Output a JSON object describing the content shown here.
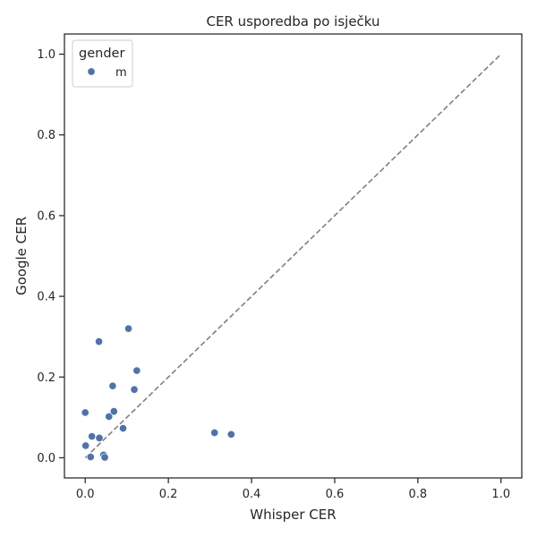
{
  "chart_data": {
    "type": "scatter",
    "title": "CER usporedba po isječku",
    "xlabel": "Whisper CER",
    "ylabel": "Google CER",
    "xlim": [
      -0.05,
      1.05
    ],
    "ylim": [
      -0.05,
      1.05
    ],
    "xticks": [
      0.0,
      0.2,
      0.4,
      0.6,
      0.8,
      1.0
    ],
    "yticks": [
      0.0,
      0.2,
      0.4,
      0.6,
      0.8,
      1.0
    ],
    "xtick_labels": [
      "0.0",
      "0.2",
      "0.4",
      "0.6",
      "0.8",
      "1.0"
    ],
    "ytick_labels": [
      "0.0",
      "0.2",
      "0.4",
      "0.6",
      "0.8",
      "1.0"
    ],
    "grid": false,
    "legend": {
      "title": "gender",
      "placement": "top-left",
      "entries": [
        {
          "label": "m",
          "color": "#4c72b0"
        }
      ]
    },
    "reference_line": {
      "from": [
        0,
        0
      ],
      "to": [
        1,
        1
      ],
      "style": "dashed",
      "color": "#808080"
    },
    "series": [
      {
        "name": "m",
        "color": "#4c72b0",
        "points": [
          {
            "x": 0.0,
            "y": 0.112
          },
          {
            "x": 0.001,
            "y": 0.03
          },
          {
            "x": 0.013,
            "y": 0.002
          },
          {
            "x": 0.016,
            "y": 0.053
          },
          {
            "x": 0.033,
            "y": 0.288
          },
          {
            "x": 0.034,
            "y": 0.049
          },
          {
            "x": 0.044,
            "y": 0.007
          },
          {
            "x": 0.047,
            "y": 0.001
          },
          {
            "x": 0.057,
            "y": 0.102
          },
          {
            "x": 0.066,
            "y": 0.178
          },
          {
            "x": 0.069,
            "y": 0.115
          },
          {
            "x": 0.091,
            "y": 0.073
          },
          {
            "x": 0.104,
            "y": 0.32
          },
          {
            "x": 0.118,
            "y": 0.169
          },
          {
            "x": 0.124,
            "y": 0.216
          },
          {
            "x": 0.311,
            "y": 0.062
          },
          {
            "x": 0.351,
            "y": 0.058
          }
        ]
      }
    ]
  }
}
